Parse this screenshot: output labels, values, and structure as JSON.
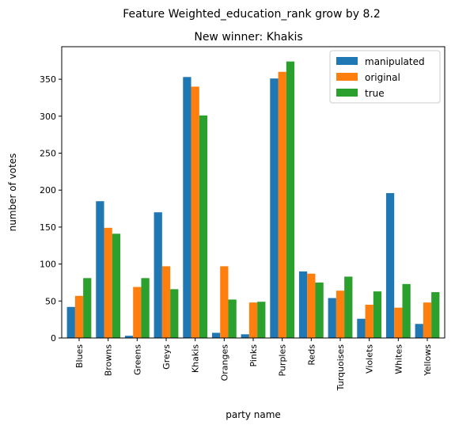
{
  "chart_data": {
    "type": "bar",
    "suptitle": "Feature Weighted_education_rank grow by 8.2",
    "title": "New winner: Khakis",
    "xlabel": "party name",
    "ylabel": "number of votes",
    "ylim": [
      0,
      394
    ],
    "yticks": [
      0,
      50,
      100,
      150,
      200,
      250,
      300,
      350
    ],
    "categories": [
      "Blues",
      "Browns",
      "Greens",
      "Greys",
      "Khakis",
      "Oranges",
      "Pinks",
      "Purples",
      "Reds",
      "Turquoises",
      "Violets",
      "Whites",
      "Yellows"
    ],
    "series": [
      {
        "name": "manipulated",
        "color": "#1f77b4",
        "values": [
          42,
          185,
          3,
          170,
          353,
          7,
          5,
          351,
          90,
          54,
          26,
          196,
          19
        ]
      },
      {
        "name": "original",
        "color": "#ff7f0e",
        "values": [
          57,
          149,
          69,
          97,
          340,
          97,
          48,
          360,
          87,
          64,
          45,
          41,
          48
        ]
      },
      {
        "name": "true",
        "color": "#2ca02c",
        "values": [
          81,
          141,
          81,
          66,
          301,
          52,
          49,
          374,
          75,
          83,
          63,
          73,
          62
        ]
      }
    ],
    "legend": "top-right",
    "grid": false
  }
}
